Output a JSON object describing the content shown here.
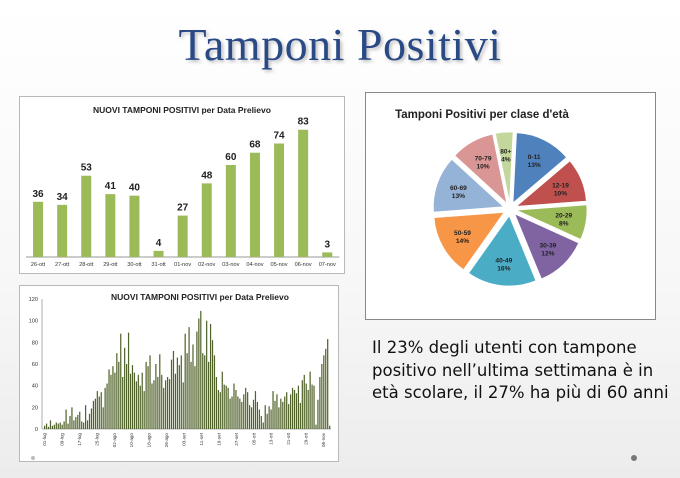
{
  "slide": {
    "title": "Tamponi Positivi",
    "note": "Il 23% degli utenti con tampone positivo nell’ultima settimana è in età scolare,    il 27% ha più di 60 anni"
  },
  "colors": {
    "title": "#2a4a86",
    "bar_green": "#9bbb59",
    "bar_dark": "#4f6228"
  },
  "chart_data": [
    {
      "type": "bar",
      "title": "NUOVI TAMPONI POSITIVI per Data Prelievo",
      "categories": [
        "26-ott",
        "27-ott",
        "28-ott",
        "29-ott",
        "30-ott",
        "31-ott",
        "01-nov",
        "02-nov",
        "03-nov",
        "04-nov",
        "05-nov",
        "06-nov",
        "07-nov"
      ],
      "values": [
        36,
        34,
        53,
        41,
        40,
        4,
        27,
        48,
        60,
        68,
        74,
        83,
        3
      ],
      "data_labels": [
        "36",
        "34",
        "53",
        "41",
        "40",
        "4",
        "27",
        "48",
        "60",
        "68",
        "74",
        "83",
        "3"
      ],
      "ylim": [
        0,
        90
      ],
      "grid": false,
      "color": "#9bbb59"
    },
    {
      "type": "pie",
      "title": "Tamponi Positivi per clase d'età",
      "slices": [
        {
          "label": "0-11",
          "pct_label": "13%",
          "value": 13,
          "color": "#4f81bd"
        },
        {
          "label": "12-19",
          "pct_label": "10%",
          "value": 10,
          "color": "#c0504d"
        },
        {
          "label": "20-29",
          "pct_label": "8%",
          "value": 8,
          "color": "#9bbb59"
        },
        {
          "label": "30-39",
          "pct_label": "12%",
          "value": 12,
          "color": "#8064a2"
        },
        {
          "label": "40-49",
          "pct_label": "16%",
          "value": 16,
          "color": "#4bacc6"
        },
        {
          "label": "50-59",
          "pct_label": "14%",
          "value": 14,
          "color": "#f79646"
        },
        {
          "label": "60-69",
          "pct_label": "13%",
          "value": 13,
          "color": "#95b3d7"
        },
        {
          "label": "70-79",
          "pct_label": "10%",
          "value": 10,
          "color": "#d99694"
        },
        {
          "label": "80+",
          "pct_label": "4%",
          "value": 4,
          "color": "#c3d69b"
        }
      ]
    },
    {
      "type": "bar",
      "title": "NUOVI TAMPONI POSITIVI per Data Prelievo",
      "ylim": [
        0,
        120
      ],
      "yticks": [
        "0",
        "20",
        "40",
        "60",
        "80",
        "100",
        "120"
      ],
      "grid": false,
      "color": "#4f6228",
      "values": [
        3,
        5,
        2,
        8,
        3,
        4,
        6,
        5,
        6,
        4,
        7,
        18,
        5,
        12,
        20,
        8,
        11,
        13,
        16,
        7,
        6,
        22,
        8,
        14,
        19,
        26,
        28,
        35,
        30,
        34,
        20,
        38,
        42,
        55,
        50,
        58,
        52,
        70,
        62,
        88,
        48,
        75,
        60,
        89,
        51,
        59,
        52,
        44,
        50,
        40,
        52,
        35,
        62,
        58,
        68,
        42,
        45,
        60,
        48,
        69,
        50,
        38,
        45,
        48,
        46,
        64,
        72,
        51,
        66,
        59,
        68,
        43,
        88,
        70,
        94,
        62,
        78,
        58,
        90,
        102,
        109,
        70,
        68,
        100,
        62,
        97,
        82,
        68,
        48,
        36,
        34,
        53,
        41,
        40,
        38,
        28,
        30,
        42,
        36,
        30,
        28,
        25,
        32,
        38,
        34,
        22,
        20,
        27,
        35,
        25,
        18,
        12,
        6,
        22,
        14,
        21,
        18,
        35,
        26,
        32,
        20,
        28,
        25,
        30,
        34,
        23,
        32,
        38,
        36,
        33,
        40,
        24,
        45,
        50,
        42,
        36,
        53,
        41,
        40,
        4,
        27,
        48,
        60,
        68,
        74,
        83,
        3
      ],
      "x_tick_labels": [
        "01-lug",
        "09-lug",
        "17-lug",
        "25-lug",
        "02-ago",
        "10-ago",
        "18-ago",
        "26-ago",
        "03-set",
        "11-set",
        "19-set",
        "27-set",
        "05-ott",
        "13-ott",
        "21-ott",
        "29-ott",
        "06-nov"
      ]
    }
  ]
}
